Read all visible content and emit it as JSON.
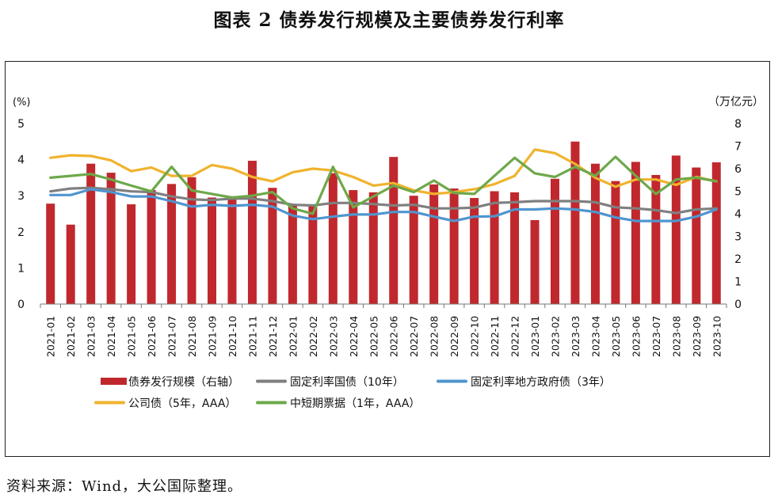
{
  "title": "图表 2  债券发行规模及主要债券发行利率",
  "source": "资料来源：Wind，大公国际整理。",
  "chart_data": {
    "type": "bar+line",
    "categories": [
      "2021-01",
      "2021-02",
      "2021-03",
      "2021-04",
      "2021-05",
      "2021-06",
      "2021-07",
      "2021-08",
      "2021-09",
      "2021-10",
      "2021-11",
      "2021-12",
      "2022-01",
      "2022-02",
      "2022-03",
      "2022-04",
      "2022-05",
      "2022-06",
      "2022-07",
      "2022-08",
      "2022-09",
      "2022-10",
      "2022-11",
      "2022-12",
      "2023-01",
      "2023-02",
      "2023-03",
      "2023-04",
      "2023-05",
      "2023-06",
      "2023-07",
      "2023-08",
      "2023-09",
      "2023-10"
    ],
    "left_axis": {
      "unit_label": "(%)",
      "ylim": [
        0,
        5
      ],
      "ticks": [
        "0",
        "1",
        "2",
        "3",
        "4",
        "5"
      ]
    },
    "right_axis": {
      "unit_label": "（万亿元）",
      "ylim": [
        0,
        8
      ],
      "ticks": [
        "0",
        "1",
        "2",
        "3",
        "4",
        "5",
        "6",
        "7",
        "8"
      ]
    },
    "legend_position": "bottom",
    "grid": false,
    "bar_series": {
      "name": "债券发行规模（右轴）",
      "axis": "right",
      "color": "#C0282D",
      "values": [
        4.45,
        3.52,
        6.22,
        5.82,
        4.42,
        5.05,
        5.32,
        5.62,
        4.72,
        4.78,
        6.35,
        5.15,
        4.38,
        4.32,
        5.8,
        5.05,
        4.95,
        6.52,
        4.8,
        5.3,
        5.12,
        4.7,
        5.0,
        4.95,
        3.72,
        5.55,
        7.2,
        6.22,
        5.45,
        6.3,
        5.72,
        6.58,
        6.05,
        6.28
      ]
    },
    "line_series": [
      {
        "name": "固定利率国债（10年）",
        "axis": "left",
        "color": "#7F7F7F",
        "values": [
          3.12,
          3.2,
          3.22,
          3.18,
          3.12,
          3.1,
          2.98,
          2.9,
          2.88,
          2.92,
          2.92,
          2.85,
          2.75,
          2.73,
          2.8,
          2.8,
          2.77,
          2.73,
          2.75,
          2.65,
          2.65,
          2.67,
          2.8,
          2.82,
          2.85,
          2.85,
          2.85,
          2.82,
          2.68,
          2.65,
          2.6,
          2.52,
          2.62,
          2.65
        ]
      },
      {
        "name": "固定利率地方政府债（3年）",
        "axis": "left",
        "color": "#4F95CF",
        "values": [
          3.02,
          3.02,
          3.18,
          3.1,
          2.98,
          2.98,
          2.85,
          2.7,
          2.75,
          2.72,
          2.75,
          2.7,
          2.45,
          2.35,
          2.42,
          2.48,
          2.48,
          2.55,
          2.55,
          2.42,
          2.3,
          2.42,
          2.43,
          2.62,
          2.62,
          2.65,
          2.62,
          2.55,
          2.4,
          2.3,
          2.3,
          2.3,
          2.42,
          2.62
        ]
      },
      {
        "name": "公司债（5年，AAA）",
        "axis": "left",
        "color": "#F0B32E",
        "values": [
          4.05,
          4.12,
          4.1,
          3.98,
          3.68,
          3.78,
          3.55,
          3.55,
          3.85,
          3.75,
          3.52,
          3.4,
          3.65,
          3.75,
          3.7,
          3.52,
          3.28,
          3.35,
          3.15,
          3.05,
          3.1,
          3.18,
          3.32,
          3.55,
          4.28,
          4.18,
          3.88,
          3.5,
          3.25,
          3.45,
          3.45,
          3.3,
          3.52,
          3.4
        ]
      },
      {
        "name": "中短期票据（1年，AAA）",
        "axis": "left",
        "color": "#6EA84A",
        "values": [
          3.5,
          3.55,
          3.6,
          3.45,
          3.28,
          3.12,
          3.8,
          3.15,
          3.05,
          2.95,
          3.0,
          3.1,
          2.65,
          2.5,
          3.8,
          2.68,
          2.98,
          3.28,
          3.1,
          3.42,
          3.08,
          3.05,
          3.55,
          4.05,
          3.62,
          3.52,
          3.8,
          3.55,
          4.08,
          3.55,
          3.05,
          3.45,
          3.5,
          3.4
        ]
      }
    ]
  }
}
